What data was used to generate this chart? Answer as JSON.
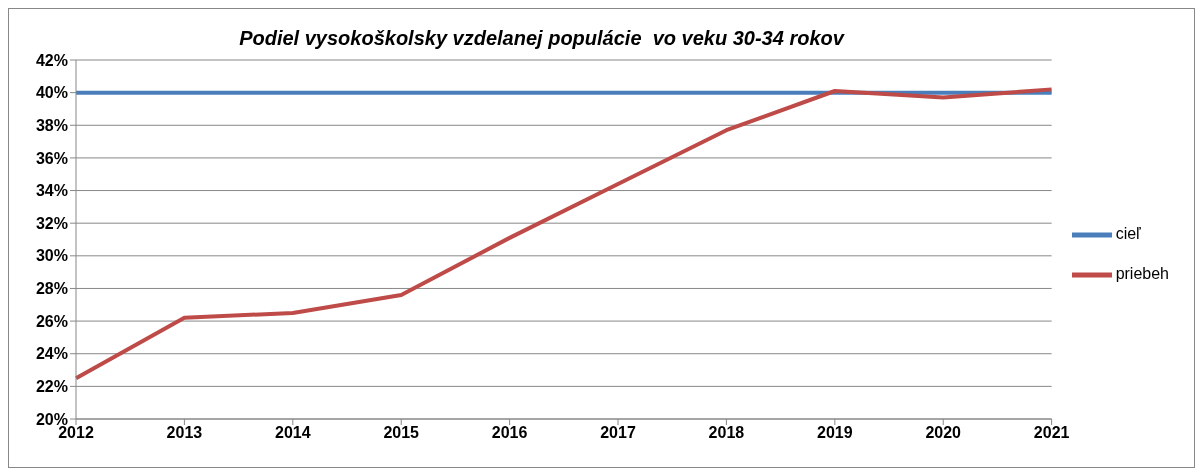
{
  "chart_data": {
    "type": "line",
    "title": "Podiel vysokoškolsky vzdelanej populácie  vo veku 30-34 rokov",
    "categories": [
      "2012",
      "2013",
      "2014",
      "2015",
      "2016",
      "2017",
      "2018",
      "2019",
      "2020",
      "2021"
    ],
    "series": [
      {
        "name": "cieľ",
        "color": "#4a7ebb",
        "values": [
          40,
          40,
          40,
          40,
          40,
          40,
          40,
          40,
          40,
          40
        ]
      },
      {
        "name": "priebeh",
        "color": "#be4b48",
        "values": [
          22.5,
          26.2,
          26.5,
          27.6,
          31.1,
          34.4,
          37.7,
          40.1,
          39.7,
          40.2
        ]
      }
    ],
    "ylim": [
      20,
      42
    ],
    "yticks": [
      {
        "value": 20,
        "label": "20%"
      },
      {
        "value": 22,
        "label": "22%"
      },
      {
        "value": 24,
        "label": "24%"
      },
      {
        "value": 26,
        "label": "26%"
      },
      {
        "value": 28,
        "label": "28%"
      },
      {
        "value": 30,
        "label": "30%"
      },
      {
        "value": 32,
        "label": "32%"
      },
      {
        "value": 34,
        "label": "34%"
      },
      {
        "value": 36,
        "label": "36%"
      },
      {
        "value": 38,
        "label": "38%"
      },
      {
        "value": 40,
        "label": "40%"
      },
      {
        "value": 42,
        "label": "42%"
      }
    ],
    "grid": "y",
    "legend": "right",
    "marker": "none",
    "line_style": "solid"
  }
}
